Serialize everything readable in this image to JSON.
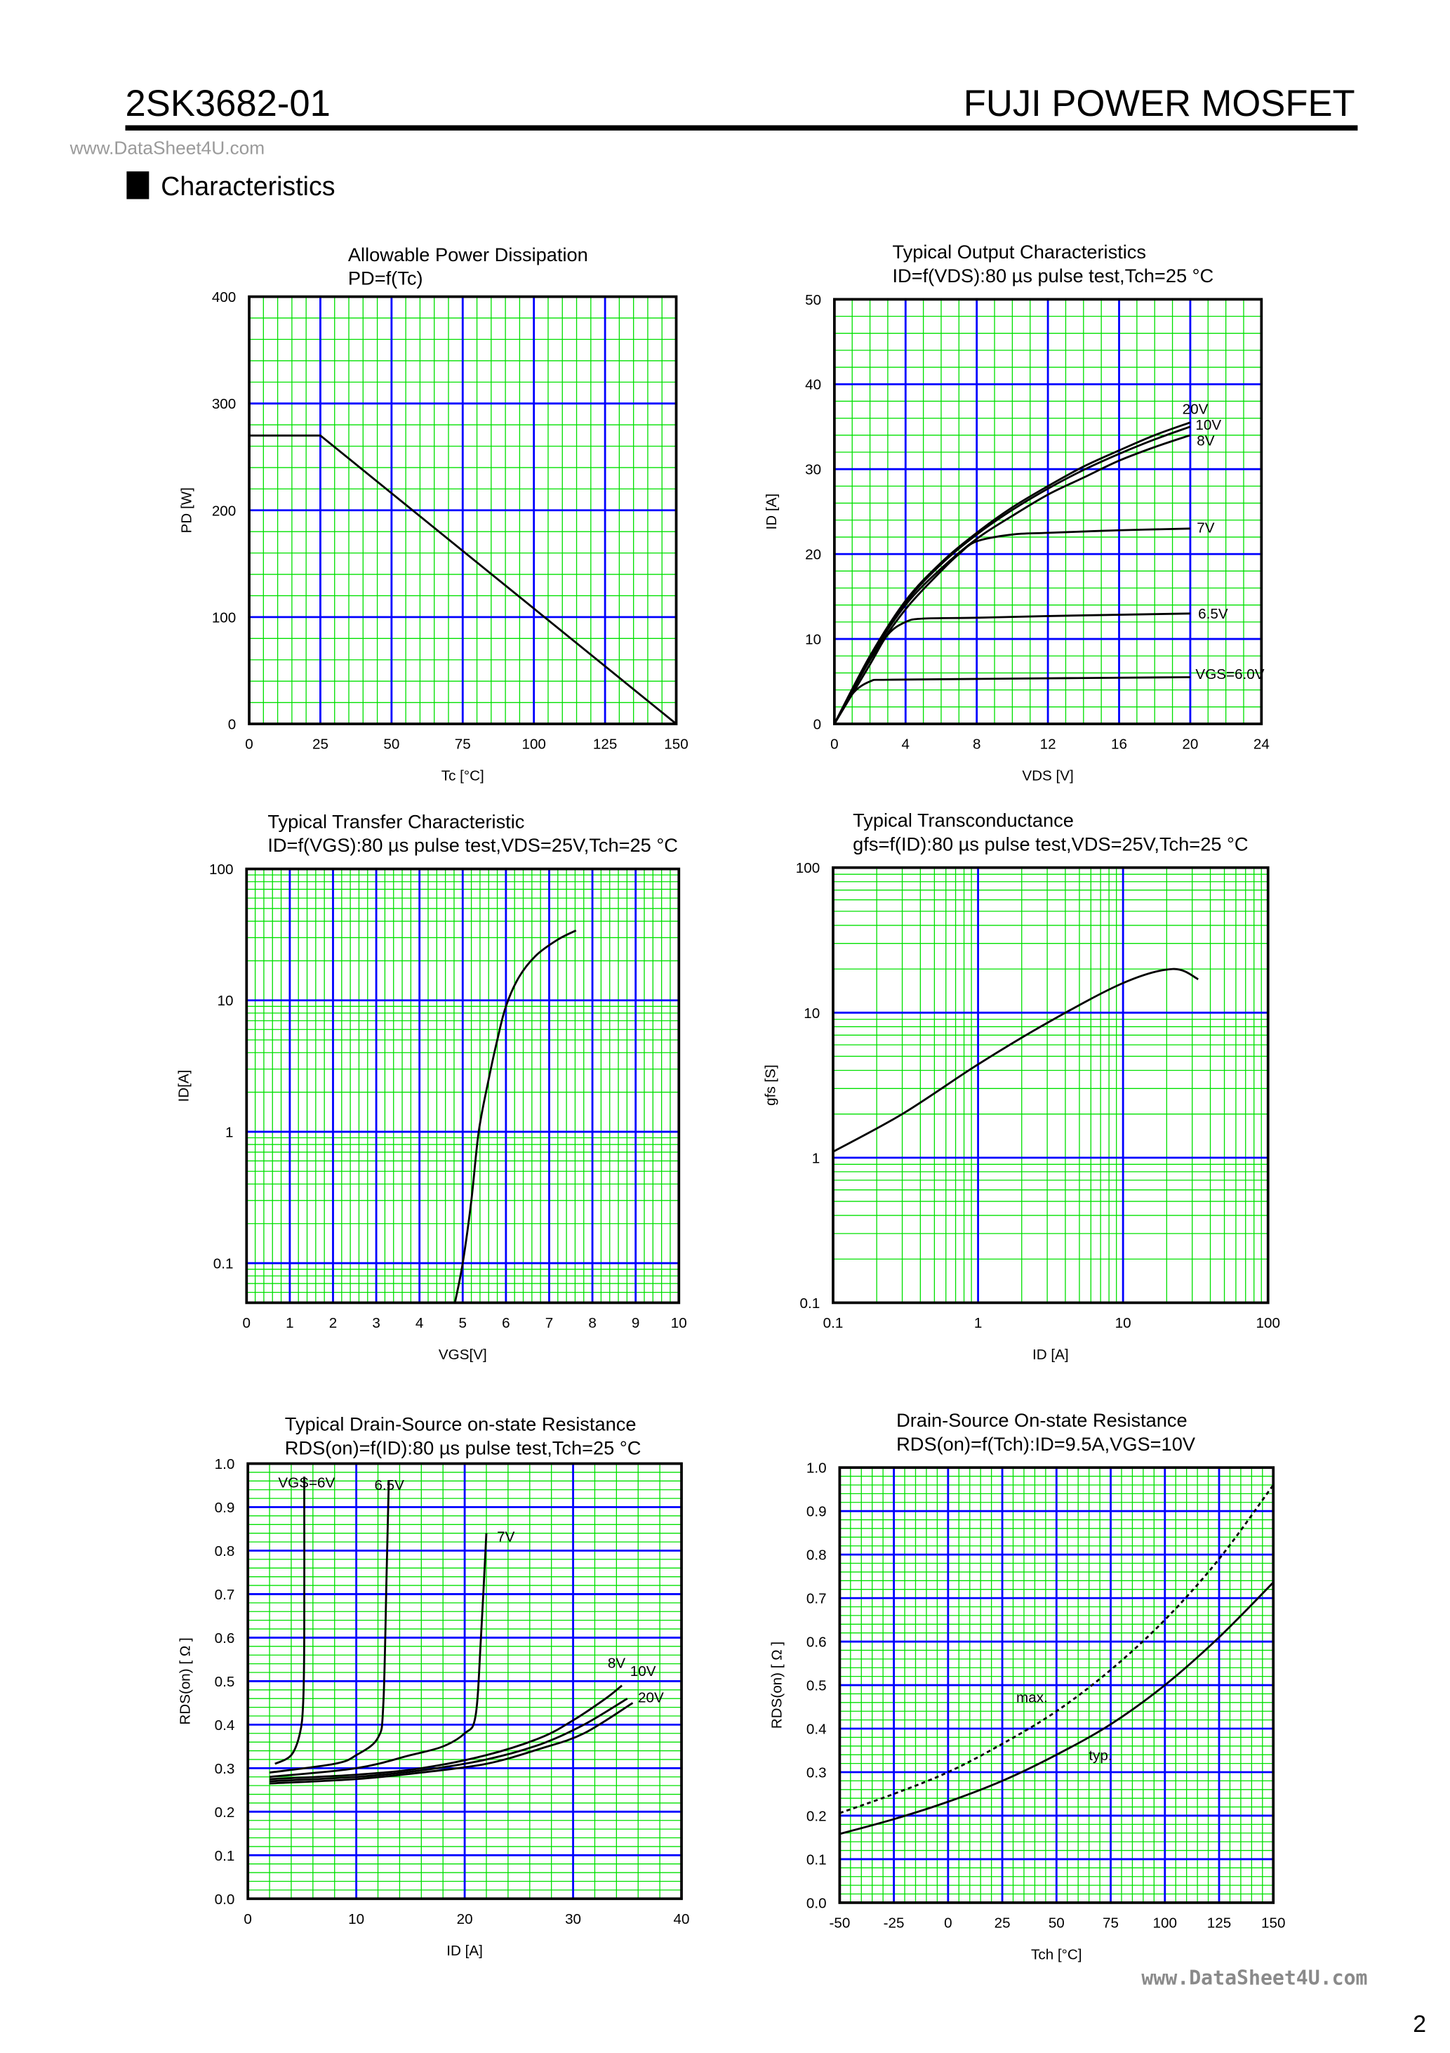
{
  "header": {
    "part_number": "2SK3682-01",
    "brand": "FUJI POWER MOSFET",
    "watermark_top": "www.DataSheet4U.com",
    "section_title": "Characteristics",
    "watermark_bottom": "www.DataSheet4U.com",
    "page_number": "2"
  },
  "colors": {
    "major_grid": "#0000ff",
    "minor_grid": "#00e000",
    "curve": "#000000"
  },
  "chart_data": [
    {
      "type": "line",
      "title": [
        "Allowable Power Dissipation",
        "PD=f(Tc)"
      ],
      "xlabel": "Tc [°C]",
      "ylabel": "PD [W]",
      "xscale": "linear",
      "yscale": "linear",
      "xlim": [
        0,
        150
      ],
      "ylim": [
        0,
        400
      ],
      "grid": true,
      "xticks": [
        "0",
        "25",
        "50",
        "75",
        "100",
        "125",
        "150"
      ],
      "yticks": [
        "0",
        "100",
        "200",
        "300",
        "400"
      ],
      "series": [
        {
          "points": [
            [
              0,
              270
            ],
            [
              25,
              270
            ],
            [
              150,
              0
            ]
          ]
        }
      ]
    },
    {
      "type": "line",
      "title": [
        "Typical Output Characteristics",
        "ID=f(VDS):80 µs pulse test,Tch=25 °C"
      ],
      "xlabel": "VDS [V]",
      "ylabel": "ID [A]",
      "xscale": "linear",
      "yscale": "linear",
      "xlim": [
        0,
        24
      ],
      "ylim": [
        0,
        50
      ],
      "grid": true,
      "xticks": [
        "0",
        "4",
        "8",
        "12",
        "16",
        "20",
        "24"
      ],
      "yticks": [
        "0",
        "10",
        "20",
        "30",
        "40",
        "50"
      ],
      "series": [
        {
          "name": "20V",
          "points": [
            [
              0,
              0
            ],
            [
              2,
              8
            ],
            [
              4,
              14.5
            ],
            [
              6,
              19
            ],
            [
              8,
              22.5
            ],
            [
              10,
              25.5
            ],
            [
              12,
              28
            ],
            [
              14,
              30.3
            ],
            [
              16,
              32.2
            ],
            [
              18,
              34
            ],
            [
              20,
              35.5
            ]
          ]
        },
        {
          "name": "10V",
          "points": [
            [
              0,
              0
            ],
            [
              2,
              7.9
            ],
            [
              4,
              14.3
            ],
            [
              6,
              18.8
            ],
            [
              8,
              22.3
            ],
            [
              10,
              25.2
            ],
            [
              12,
              27.7
            ],
            [
              14,
              29.9
            ],
            [
              16,
              31.8
            ],
            [
              18,
              33.5
            ],
            [
              20,
              35
            ]
          ]
        },
        {
          "name": "8V",
          "points": [
            [
              0,
              0
            ],
            [
              2,
              7.8
            ],
            [
              4,
              14
            ],
            [
              6,
              18.3
            ],
            [
              8,
              21.8
            ],
            [
              10,
              24.5
            ],
            [
              12,
              27
            ],
            [
              14,
              29
            ],
            [
              16,
              31
            ],
            [
              18,
              32.6
            ],
            [
              20,
              34
            ]
          ]
        },
        {
          "name": "7V",
          "points": [
            [
              0,
              0
            ],
            [
              2,
              7.5
            ],
            [
              4,
              13.5
            ],
            [
              6,
              18
            ],
            [
              7,
              20
            ],
            [
              8,
              21.5
            ],
            [
              10,
              22.3
            ],
            [
              12,
              22.5
            ],
            [
              16,
              22.8
            ],
            [
              20,
              23
            ]
          ]
        },
        {
          "name": "6.5V",
          "points": [
            [
              0,
              0
            ],
            [
              2,
              7
            ],
            [
              3,
              10.5
            ],
            [
              4,
              12
            ],
            [
              5,
              12.4
            ],
            [
              8,
              12.5
            ],
            [
              12,
              12.7
            ],
            [
              20,
              13
            ]
          ]
        },
        {
          "name": "VGS=6.0V",
          "points": [
            [
              0,
              0
            ],
            [
              1,
              3.5
            ],
            [
              2,
              5
            ],
            [
              3,
              5.2
            ],
            [
              8,
              5.3
            ],
            [
              20,
              5.5
            ]
          ]
        }
      ]
    },
    {
      "type": "line",
      "title": [
        "Typical Transfer Characteristic",
        "ID=f(VGS):80 µs pulse test,VDS=25V,Tch=25 °C"
      ],
      "xlabel": "VGS[V]",
      "ylabel": "ID[A]",
      "xscale": "linear",
      "yscale": "log",
      "xlim": [
        0,
        10
      ],
      "ylim": [
        0.05,
        100
      ],
      "grid": true,
      "xticks": [
        "0",
        "1",
        "2",
        "3",
        "4",
        "5",
        "6",
        "7",
        "8",
        "9",
        "10"
      ],
      "yticks": [
        "0.1",
        "1",
        "10",
        "100"
      ],
      "series": [
        {
          "points": [
            [
              4.82,
              0.05
            ],
            [
              5.0,
              0.1
            ],
            [
              5.2,
              0.3
            ],
            [
              5.37,
              1
            ],
            [
              5.6,
              2.5
            ],
            [
              5.8,
              5
            ],
            [
              6.0,
              9
            ],
            [
              6.3,
              15
            ],
            [
              6.7,
              22
            ],
            [
              7.2,
              29
            ],
            [
              7.62,
              34
            ]
          ]
        }
      ]
    },
    {
      "type": "line",
      "title": [
        "Typical Transconductance",
        "gfs=f(ID):80 µs pulse test,VDS=25V,Tch=25 °C"
      ],
      "xlabel": "ID [A]",
      "ylabel": "gfs [S]",
      "xscale": "log",
      "yscale": "log",
      "xlim": [
        0.1,
        100
      ],
      "ylim": [
        0.1,
        100
      ],
      "grid": true,
      "xticks": [
        "0.1",
        "1",
        "10",
        "100"
      ],
      "yticks": [
        "0.1",
        "1",
        "10",
        "100"
      ],
      "series": [
        {
          "points": [
            [
              0.1,
              1.1
            ],
            [
              0.3,
              2
            ],
            [
              1,
              4.4
            ],
            [
              3,
              8.5
            ],
            [
              10,
              16
            ],
            [
              22,
              20
            ],
            [
              33,
              17
            ]
          ]
        }
      ]
    },
    {
      "type": "line",
      "title": [
        "Typical Drain-Source on-state Resistance",
        "RDS(on)=f(ID):80  µs pulse test,Tch=25 °C"
      ],
      "xlabel": "ID [A]",
      "ylabel": "RDS(on) [ Ω ]",
      "xscale": "linear",
      "yscale": "linear",
      "xlim": [
        0,
        40
      ],
      "ylim": [
        0,
        1.0
      ],
      "grid": true,
      "xticks": [
        "0",
        "10",
        "20",
        "30",
        "40"
      ],
      "yticks": [
        "0.0",
        "0.1",
        "0.2",
        "0.3",
        "0.4",
        "0.5",
        "0.6",
        "0.7",
        "0.8",
        "0.9",
        "1.0"
      ],
      "series": [
        {
          "name": "VGS=6V",
          "points": [
            [
              2.5,
              0.31
            ],
            [
              4,
              0.33
            ],
            [
              4.8,
              0.38
            ],
            [
              5.1,
              0.45
            ],
            [
              5.2,
              0.6
            ],
            [
              5.2,
              0.97
            ]
          ]
        },
        {
          "name": "6.5V",
          "points": [
            [
              2,
              0.29
            ],
            [
              8,
              0.31
            ],
            [
              10,
              0.33
            ],
            [
              12,
              0.37
            ],
            [
              12.5,
              0.45
            ],
            [
              12.8,
              0.75
            ],
            [
              13,
              0.96
            ]
          ]
        },
        {
          "name": "7V",
          "points": [
            [
              2,
              0.28
            ],
            [
              10,
              0.3
            ],
            [
              15,
              0.33
            ],
            [
              18,
              0.35
            ],
            [
              20,
              0.38
            ],
            [
              21,
              0.42
            ],
            [
              21.5,
              0.6
            ],
            [
              22,
              0.84
            ]
          ]
        },
        {
          "name": "8V",
          "points": [
            [
              2,
              0.275
            ],
            [
              10,
              0.285
            ],
            [
              16,
              0.3
            ],
            [
              22,
              0.33
            ],
            [
              27,
              0.37
            ],
            [
              30,
              0.41
            ],
            [
              33,
              0.46
            ],
            [
              34.5,
              0.49
            ]
          ]
        },
        {
          "name": "10V",
          "points": [
            [
              2,
              0.27
            ],
            [
              10,
              0.28
            ],
            [
              16,
              0.295
            ],
            [
              22,
              0.32
            ],
            [
              27,
              0.355
            ],
            [
              31,
              0.4
            ],
            [
              35,
              0.46
            ]
          ]
        },
        {
          "name": "20V",
          "points": [
            [
              2,
              0.265
            ],
            [
              10,
              0.275
            ],
            [
              16,
              0.29
            ],
            [
              22,
              0.31
            ],
            [
              27,
              0.345
            ],
            [
              31,
              0.38
            ],
            [
              35.5,
              0.45
            ]
          ]
        }
      ]
    },
    {
      "type": "line",
      "title": [
        "Drain-Source On-state Resistance",
        "RDS(on)=f(Tch):ID=9.5A,VGS=10V"
      ],
      "xlabel": "Tch [°C]",
      "ylabel": "RDS(on) [ Ω ]",
      "xscale": "linear",
      "yscale": "linear",
      "xlim": [
        -50,
        150
      ],
      "ylim": [
        0,
        1.0
      ],
      "grid": true,
      "xticks": [
        "-50",
        "-25",
        "0",
        "25",
        "50",
        "75",
        "100",
        "125",
        "150"
      ],
      "yticks": [
        "0.0",
        "0.1",
        "0.2",
        "0.3",
        "0.4",
        "0.5",
        "0.6",
        "0.7",
        "0.8",
        "0.9",
        "1.0"
      ],
      "series": [
        {
          "name": "max.",
          "style": "dashed",
          "points": [
            [
              -50,
              0.206
            ],
            [
              -25,
              0.25
            ],
            [
              0,
              0.3
            ],
            [
              25,
              0.365
            ],
            [
              50,
              0.44
            ],
            [
              75,
              0.535
            ],
            [
              100,
              0.65
            ],
            [
              125,
              0.79
            ],
            [
              150,
              0.96
            ]
          ]
        },
        {
          "name": "typ.",
          "style": "solid",
          "points": [
            [
              -50,
              0.158
            ],
            [
              -25,
              0.192
            ],
            [
              0,
              0.232
            ],
            [
              25,
              0.28
            ],
            [
              50,
              0.34
            ],
            [
              75,
              0.41
            ],
            [
              100,
              0.5
            ],
            [
              125,
              0.61
            ],
            [
              150,
              0.736
            ]
          ]
        }
      ]
    }
  ]
}
